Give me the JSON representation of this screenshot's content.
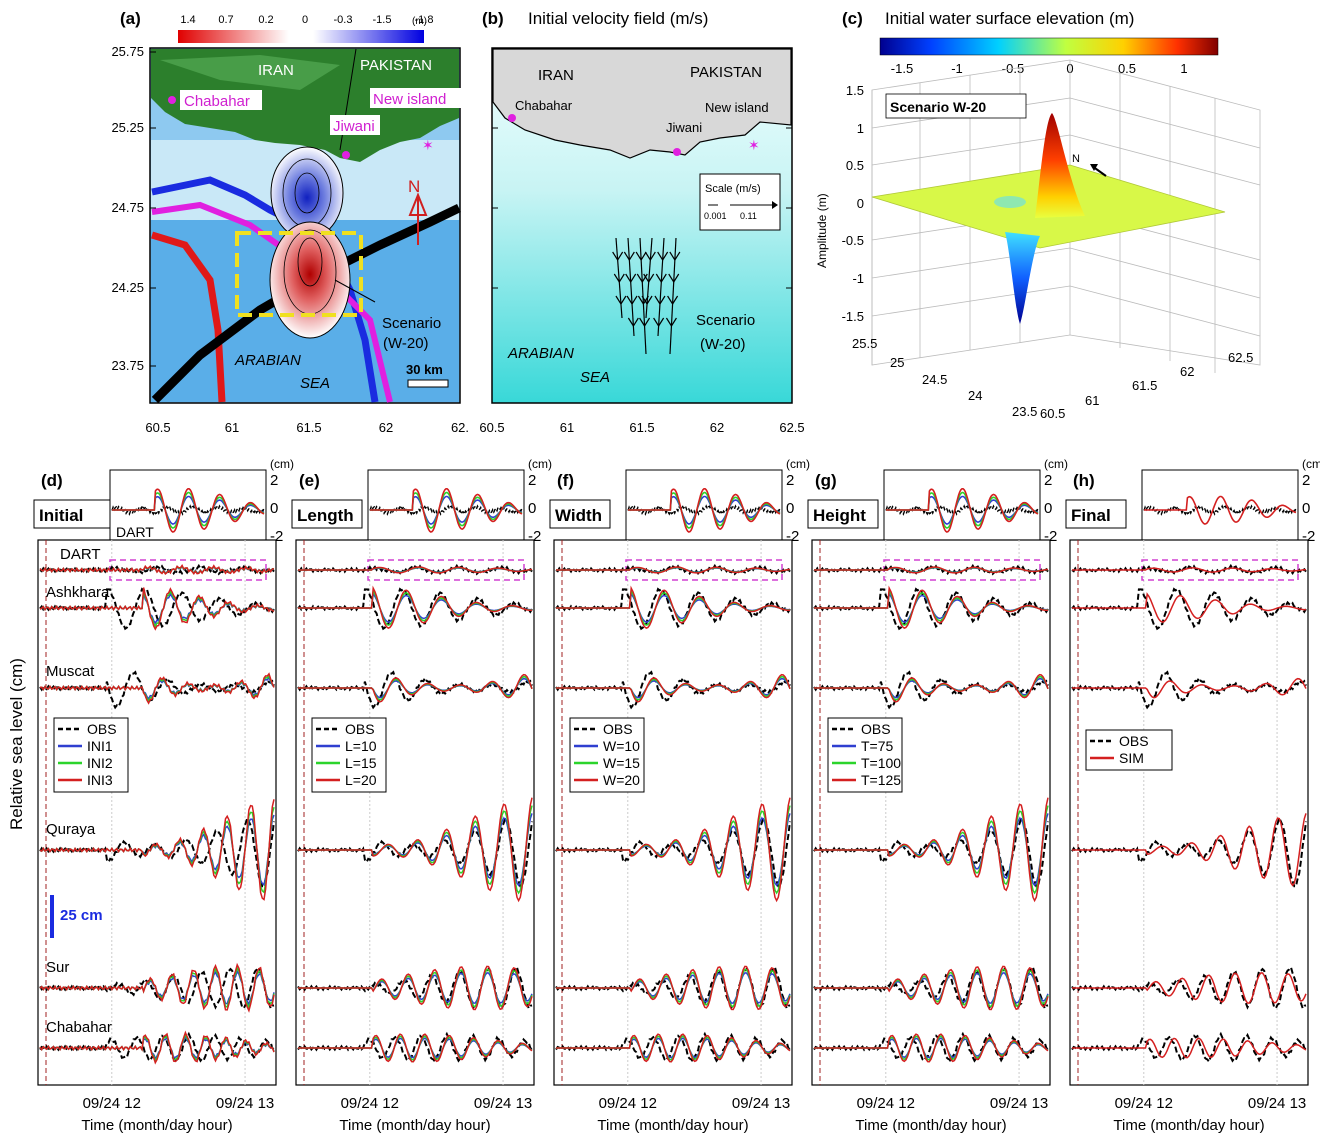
{
  "panel_a": {
    "letter": "(a)",
    "colorbar_ticks": [
      "1.4",
      "0.7",
      "0.2",
      "0",
      "-0.3",
      "-1.5",
      "-1.8"
    ],
    "colorbar_unit": "(m)",
    "y_ticks": [
      "25.75",
      "25.25",
      "24.75",
      "24.25",
      "23.75"
    ],
    "x_ticks": [
      "60.5",
      "61",
      "61.5",
      "62",
      "62."
    ],
    "labels": {
      "iran": "IRAN",
      "pakistan": "PAKISTAN",
      "chabahar": "Chabahar",
      "new_island": "New island",
      "jiwani": "Jiwani",
      "north": "N",
      "scenario": "Scenario",
      "scenario_name": "(W-20)",
      "sea_1": "ARABIAN",
      "sea_2": "SEA",
      "scale": "30 km"
    }
  },
  "panel_b": {
    "letter": "(b)",
    "title": "Initial velocity field (m/s)",
    "x_ticks": [
      "60.5",
      "61",
      "61.5",
      "62",
      "62.5"
    ],
    "labels": {
      "iran": "IRAN",
      "pakistan": "PAKISTAN",
      "chabahar": "Chabahar",
      "new_island": "New island",
      "jiwani": "Jiwani",
      "scenario": "Scenario",
      "scenario_name": "(W-20)",
      "sea_1": "ARABIAN",
      "sea_2": "SEA"
    },
    "scale_box": {
      "title": "Scale (m/s)",
      "v1": "0.001",
      "v2": "0.11"
    }
  },
  "panel_c": {
    "letter": "(c)",
    "title": "Initial water surface elevation (m)",
    "colorbar_ticks": [
      "-1.5",
      "-1",
      "-0.5",
      "0",
      "0.5",
      "1"
    ],
    "scenario_label": "Scenario W-20",
    "z_label": "Amplitude (m)",
    "z_ticks": [
      "1.5",
      "1",
      "0.5",
      "0",
      "-0.5",
      "-1",
      "-1.5"
    ],
    "lat_ticks": [
      "25.5",
      "25",
      "24.5",
      "24",
      "23.5"
    ],
    "lon_ticks": [
      "60.5",
      "61",
      "61.5",
      "62",
      "62.5"
    ],
    "north": "N"
  },
  "tide_panels": {
    "y_label": "Relative sea level (cm)",
    "scale_bar": "25 cm",
    "unit": "(cm)",
    "inset_ticks": [
      "2",
      "0",
      "-2"
    ],
    "x_ticks": [
      "09/24 12",
      "09/24 13"
    ],
    "x_label": "Time (month/day hour)",
    "station_labels": [
      "DART",
      "Ashkhara",
      "Muscat",
      "Quraya",
      "Sur",
      "Chabahar"
    ],
    "inset_dart_label": "DART",
    "obs_color": "#000000",
    "panels": [
      {
        "letter": "(d)",
        "name": "Initial",
        "legend": [
          "OBS",
          "INI1",
          "INI2",
          "INI3"
        ]
      },
      {
        "letter": "(e)",
        "name": "Length",
        "legend": [
          "OBS",
          "L=10",
          "L=15",
          "L=20"
        ]
      },
      {
        "letter": "(f)",
        "name": "Width",
        "legend": [
          "OBS",
          "W=10",
          "W=15",
          "W=20"
        ]
      },
      {
        "letter": "(g)",
        "name": "Height",
        "legend": [
          "OBS",
          "T=75",
          "T=100",
          "T=125"
        ]
      },
      {
        "letter": "(h)",
        "name": "Final",
        "legend": [
          "OBS",
          "SIM"
        ]
      }
    ],
    "series_colors": [
      "#2f3fd0",
      "#2bd42b",
      "#d42020"
    ]
  }
}
